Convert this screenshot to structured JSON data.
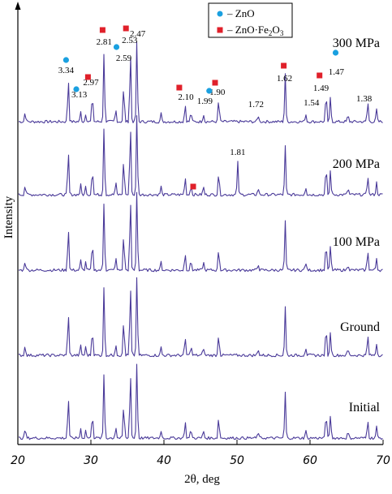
{
  "chart_data": {
    "type": "line",
    "xlabel": "2θ, deg",
    "ylabel": "Intensity",
    "xlim": [
      20,
      70
    ],
    "x_ticks": [
      20,
      30,
      40,
      50,
      60,
      70
    ],
    "x_tick_labels": [
      "20",
      "30",
      "40",
      "50",
      "60",
      "70"
    ],
    "y_ticks_shown": false,
    "line_color": "#4a3a99",
    "legend": {
      "placement": "top-center",
      "entries": [
        {
          "marker": "circle",
          "color": "#1aa0e0",
          "prefix": "– ZnO",
          "formula_base": "",
          "formula_sub1": "",
          "formula_mid": "",
          "formula_sub2": ""
        },
        {
          "marker": "square",
          "color": "#e0202a",
          "prefix": "– ZnO·Fe",
          "formula_sub1": "2",
          "formula_mid": "O",
          "formula_sub2": "3"
        }
      ]
    },
    "series": [
      {
        "name": "300 MPa",
        "offset_level": 4
      },
      {
        "name": "200 MPa",
        "offset_level": 3
      },
      {
        "name": "100 MPa",
        "offset_level": 2
      },
      {
        "name": "Ground",
        "offset_level": 1
      },
      {
        "name": "Initial",
        "offset_level": 0
      }
    ],
    "peaks": [
      {
        "two_theta": 21.0,
        "height": 0.12
      },
      {
        "two_theta": 26.9,
        "height": 0.55
      },
      {
        "two_theta": 28.6,
        "height": 0.12
      },
      {
        "two_theta": 29.3,
        "height": 0.1
      },
      {
        "two_theta": 30.2,
        "height": 0.35
      },
      {
        "two_theta": 31.8,
        "height": 0.85
      },
      {
        "two_theta": 33.4,
        "height": 0.15
      },
      {
        "two_theta": 34.5,
        "height": 0.45
      },
      {
        "two_theta": 35.4,
        "height": 0.9
      },
      {
        "two_theta": 36.3,
        "height": 1.0
      },
      {
        "two_theta": 39.6,
        "height": 0.1
      },
      {
        "two_theta": 42.9,
        "height": 0.22
      },
      {
        "two_theta": 43.7,
        "height": 0.12
      },
      {
        "two_theta": 45.4,
        "height": 0.1
      },
      {
        "two_theta": 47.5,
        "height": 0.28
      },
      {
        "two_theta": 52.9,
        "height": 0.08
      },
      {
        "two_theta": 56.6,
        "height": 0.6
      },
      {
        "two_theta": 59.4,
        "height": 0.1
      },
      {
        "two_theta": 62.2,
        "height": 0.35
      },
      {
        "two_theta": 62.8,
        "height": 0.3
      },
      {
        "two_theta": 65.2,
        "height": 0.08
      },
      {
        "two_theta": 67.9,
        "height": 0.25
      },
      {
        "two_theta": 69.1,
        "height": 0.15
      }
    ],
    "extra_peaks_200MPa": [
      {
        "two_theta": 50.1,
        "height": 0.4
      }
    ],
    "annotations_300MPa": [
      {
        "label": "3.34",
        "two_theta": 26.6,
        "level": 0.6
      },
      {
        "label": "3.13",
        "two_theta": 28.4,
        "level": 0.3
      },
      {
        "label": "2.97",
        "two_theta": 30.0,
        "level": 0.45
      },
      {
        "label": "2.81",
        "two_theta": 31.8,
        "level": 0.95
      },
      {
        "label": "2.59",
        "two_theta": 34.5,
        "level": 0.75
      },
      {
        "label": "2.53",
        "two_theta": 35.3,
        "level": 0.97
      },
      {
        "label": "2.47",
        "two_theta": 36.4,
        "level": 1.05
      },
      {
        "label": "2.10",
        "two_theta": 43.0,
        "level": 0.27
      },
      {
        "label": "1.99",
        "two_theta": 45.6,
        "level": 0.22
      },
      {
        "label": "1.90",
        "two_theta": 47.3,
        "level": 0.33
      },
      {
        "label": "1.72",
        "two_theta": 52.6,
        "level": 0.18
      },
      {
        "label": "1.62",
        "two_theta": 56.5,
        "level": 0.5
      },
      {
        "label": "1.54",
        "two_theta": 60.2,
        "level": 0.2
      },
      {
        "label": "1.49",
        "two_theta": 61.5,
        "level": 0.38
      },
      {
        "label": "1.47",
        "two_theta": 63.6,
        "level": 0.58
      },
      {
        "label": "1.38",
        "two_theta": 67.4,
        "level": 0.25
      }
    ],
    "annotation_200MPa": {
      "label": "1.81",
      "two_theta": 50.1,
      "level": 0.5
    },
    "markers_300MPa": [
      {
        "type": "circle",
        "two_theta": 26.6,
        "level": 0.76
      },
      {
        "type": "circle",
        "two_theta": 28.0,
        "level": 0.4
      },
      {
        "type": "square",
        "two_theta": 29.6,
        "level": 0.55
      },
      {
        "type": "square",
        "two_theta": 31.6,
        "level": 1.13
      },
      {
        "type": "circle",
        "two_theta": 33.5,
        "level": 0.92
      },
      {
        "type": "square",
        "two_theta": 34.8,
        "level": 1.15
      },
      {
        "type": "square",
        "two_theta": 42.1,
        "level": 0.42
      },
      {
        "type": "circle",
        "two_theta": 46.2,
        "level": 0.38
      },
      {
        "type": "square",
        "two_theta": 47.0,
        "level": 0.48
      },
      {
        "type": "square",
        "two_theta": 56.4,
        "level": 0.69
      },
      {
        "type": "square",
        "two_theta": 61.3,
        "level": 0.57
      },
      {
        "type": "circle",
        "two_theta": 63.5,
        "level": 0.85
      }
    ],
    "markers_200MPa": [
      {
        "type": "square",
        "two_theta": 44.0,
        "level": 0.1
      }
    ]
  }
}
